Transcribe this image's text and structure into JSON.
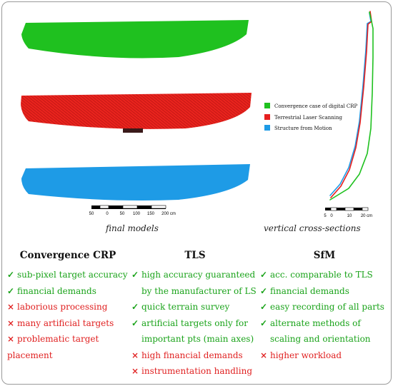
{
  "legend": [
    {
      "label": "Convergence case of digital CRP",
      "color": "#1fc11f"
    },
    {
      "label": "Terrestrial Laser Scanning",
      "color": "#e61e1e"
    },
    {
      "label": "Structure from Motion",
      "color": "#1e9be6"
    }
  ],
  "scale_left": {
    "ticks": [
      "50",
      "0",
      "50",
      "100",
      "150",
      "200 cm"
    ]
  },
  "scale_right": {
    "ticks": [
      "5",
      "0",
      "10",
      "20 cm"
    ]
  },
  "captions": {
    "left": "final models",
    "right": "vertical cross-sections"
  },
  "columns": [
    {
      "title": "Convergence CRP",
      "items": [
        {
          "type": "pro",
          "icon": "check-icon",
          "text": "sub-pixel target accuracy"
        },
        {
          "type": "pro",
          "icon": "check-icon",
          "text": "financial demands"
        },
        {
          "type": "con",
          "icon": "cross-icon",
          "text": "laborious processing"
        },
        {
          "type": "con",
          "icon": "cross-icon",
          "text": "many artificial targets"
        },
        {
          "type": "con",
          "icon": "cross-icon",
          "text": "problematic target"
        },
        {
          "type": "none",
          "text": "placement"
        }
      ]
    },
    {
      "title": "TLS",
      "items": [
        {
          "type": "pro",
          "icon": "check-icon",
          "text": "high accuracy guaranteed"
        },
        {
          "type": "none-pro",
          "text": "by the manufacturer of LS"
        },
        {
          "type": "pro",
          "icon": "check-icon",
          "text": "quick terrain survey"
        },
        {
          "type": "pro",
          "icon": "check-icon",
          "text": "artificial targets only for"
        },
        {
          "type": "none-pro",
          "text": "important pts (main axes)"
        },
        {
          "type": "con",
          "icon": "cross-icon",
          "text": "high financial demands"
        },
        {
          "type": "con",
          "icon": "cross-icon",
          "text": "instrumentation handling"
        }
      ]
    },
    {
      "title": "SfM",
      "items": [
        {
          "type": "pro",
          "icon": "check-icon",
          "text": "acc. comparable to TLS"
        },
        {
          "type": "pro",
          "icon": "check-icon",
          "text": "financial demands"
        },
        {
          "type": "pro",
          "icon": "check-icon",
          "text": "easy recording of all parts"
        },
        {
          "type": "pro",
          "icon": "check-icon",
          "text": "alternate methods of"
        },
        {
          "type": "none-pro",
          "text": "scaling and orientation"
        },
        {
          "type": "con",
          "icon": "cross-icon",
          "text": "higher workload"
        }
      ]
    }
  ],
  "glyphs": {
    "check": "✓",
    "cross": "×"
  }
}
